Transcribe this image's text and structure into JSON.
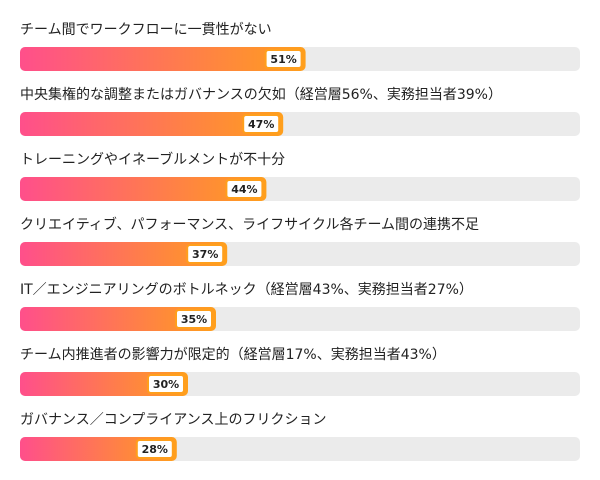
{
  "chart_data": {
    "type": "bar",
    "orientation": "horizontal",
    "categories": [
      "チーム間でワークフローに一貫性がない",
      "中央集権的な調整またはガバナンスの欠如（経営層56%、実務担当者39%）",
      "トレーニングやイネーブルメントが不十分",
      "クリエイティブ、パフォーマンス、ライフサイクル各チーム間の連携不足",
      "IT／エンジニアリングのボトルネック（経営層43%、実務担当者27%）",
      "チーム内推進者の影響力が限定的（経営層17%、実務担当者43%）",
      "ガバナンス／コンプライアンス上のフリクション"
    ],
    "values": [
      51,
      47,
      44,
      37,
      35,
      30,
      28
    ],
    "value_labels": [
      "51%",
      "47%",
      "44%",
      "37%",
      "35%",
      "30%",
      "28%"
    ],
    "xlim": [
      0,
      100
    ],
    "gradient": [
      "#ff4f8b",
      "#ff9f1c"
    ],
    "track_color": "#ebebeb",
    "label_border": "#ff9f1c"
  }
}
